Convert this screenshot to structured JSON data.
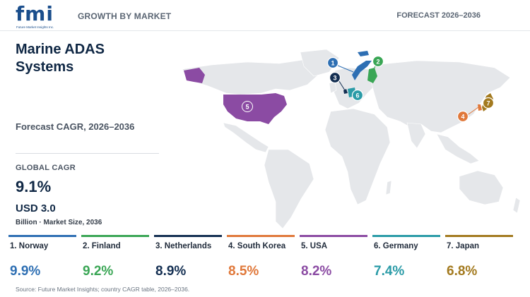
{
  "header": {
    "logo_text": "fmi",
    "logo_subtext": "Future Market Insights Inc.",
    "tagline": "GROWTH BY MARKET",
    "forecast": "FORECAST 2026–2036"
  },
  "summary": {
    "title": "Marine ADAS Systems",
    "subtitle": "Forecast CAGR, 2026–2036",
    "global_cagr_label": "GLOBAL CAGR",
    "global_cagr_value": "9.1%",
    "market_size_value": "USD 3.0",
    "market_size_unit": "Billion · Market Size, 2036"
  },
  "countries": [
    {
      "rank": "1",
      "label": "1. Norway",
      "cagr": "9.9%",
      "color": "#2e6fb3"
    },
    {
      "rank": "2",
      "label": "2. Finland",
      "cagr": "9.2%",
      "color": "#3aa655"
    },
    {
      "rank": "3",
      "label": "3. Netherlands",
      "cagr": "8.9%",
      "color": "#142f52"
    },
    {
      "rank": "4",
      "label": "4. South Korea",
      "cagr": "8.5%",
      "color": "#e0783a"
    },
    {
      "rank": "5",
      "label": "5. USA",
      "cagr": "8.2%",
      "color": "#8b4ba3"
    },
    {
      "rank": "6",
      "label": "6. Germany",
      "cagr": "7.4%",
      "color": "#2a9ba7"
    },
    {
      "rank": "7",
      "label": "7. Japan",
      "cagr": "6.8%",
      "color": "#a37a1f"
    }
  ],
  "colors": {
    "land": "#e5e7ea",
    "title": "#0f2744"
  },
  "source": "Source: Future Market Insights; country CAGR table, 2026–2036."
}
